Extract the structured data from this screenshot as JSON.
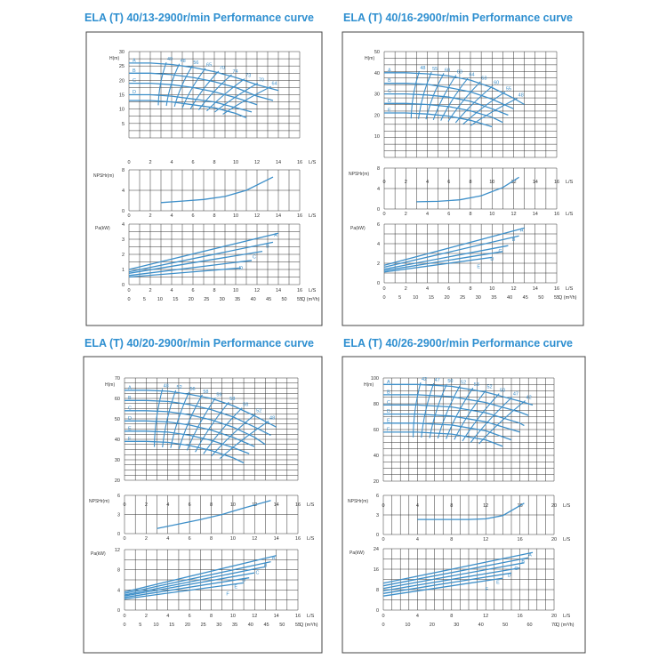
{
  "colors": {
    "curve": "#3d8fc9",
    "grid": "#333333",
    "frame": "#444444",
    "title": "#2e8fd0",
    "axis_text": "#333333"
  },
  "chart_data": [
    {
      "type": "line",
      "title": "ELA (T) 40/13-2900r/min Performance curve",
      "xlabel": "L/S",
      "x2label": "Q (m³/h)",
      "x_ticks": [
        "0",
        "2",
        "4",
        "6",
        "8",
        "10",
        "12",
        "14",
        "16"
      ],
      "x2_ticks": [
        "0",
        "5",
        "10",
        "15",
        "20",
        "25",
        "30",
        "35",
        "40",
        "45",
        "50",
        "55"
      ],
      "head": {
        "ylabel": "H(m)",
        "ylim": [
          0,
          30
        ],
        "y_ticks": [
          "5",
          "10",
          "15",
          "20",
          "25",
          "30"
        ],
        "series": [
          {
            "name": "A",
            "x": [
              0,
              2,
              4,
              6,
              8,
              10,
              12,
              14
            ],
            "y": [
              26,
              26,
              25.5,
              24.5,
              23,
              21,
              18.5,
              16.5
            ]
          },
          {
            "name": "B",
            "x": [
              0,
              2,
              4,
              6,
              8,
              10,
              12,
              13.5
            ],
            "y": [
              22.5,
              22.5,
              22,
              21,
              19.5,
              17.5,
              14.5,
              13
            ]
          },
          {
            "name": "C",
            "x": [
              0,
              2,
              4,
              6,
              8,
              10,
              12
            ],
            "y": [
              19,
              19,
              18.5,
              17.5,
              16,
              14,
              11.5
            ]
          },
          {
            "name": "D",
            "x": [
              0,
              2,
              4,
              6,
              8,
              10,
              11.5
            ],
            "y": [
              15,
              15,
              14.5,
              13.5,
              12.5,
              10.5,
              9
            ]
          },
          {
            "name": "",
            "x": [
              0,
              2,
              4,
              6,
              8,
              10,
              11
            ],
            "y": [
              13,
              13,
              12.5,
              11.5,
              10.5,
              8.5,
              7
            ]
          }
        ],
        "efficiency_labels": [
          "40",
          "48",
          "56",
          "65",
          "70",
          "74",
          "73",
          "70",
          "64"
        ]
      },
      "npsh": {
        "ylabel": "NPSHr(m)",
        "ylim": [
          0,
          8
        ],
        "y_ticks": [
          "0",
          "4",
          "8"
        ],
        "x": [
          3,
          5,
          7,
          9,
          11,
          13.5
        ],
        "y": [
          1.6,
          1.9,
          2.2,
          2.8,
          4,
          6.6
        ]
      },
      "power": {
        "ylabel": "Pa(kW)",
        "ylim": [
          0,
          4
        ],
        "y_ticks": [
          "0",
          "1",
          "2",
          "3",
          "4"
        ],
        "series": [
          {
            "name": "A",
            "x": [
              0,
              14
            ],
            "y": [
              1.0,
              3.4
            ]
          },
          {
            "name": "B",
            "x": [
              0,
              13.5
            ],
            "y": [
              0.85,
              2.8
            ]
          },
          {
            "name": "C",
            "x": [
              0,
              12.5
            ],
            "y": [
              0.75,
              2.2
            ]
          },
          {
            "name": "D",
            "x": [
              0,
              11.5
            ],
            "y": [
              0.6,
              1.6
            ]
          },
          {
            "name": "",
            "x": [
              0,
              10.5
            ],
            "y": [
              0.5,
              1.1
            ]
          }
        ]
      }
    },
    {
      "type": "line",
      "title": "ELA (T) 40/16-2900r/min Performance curve",
      "xlabel": "L/S",
      "x2label": "Q (m³/h)",
      "x_ticks": [
        "0",
        "2",
        "4",
        "6",
        "8",
        "10",
        "12",
        "14",
        "16"
      ],
      "x2_ticks": [
        "0",
        "5",
        "10",
        "15",
        "20",
        "25",
        "30",
        "35",
        "40",
        "45",
        "50",
        "55"
      ],
      "head": {
        "ylabel": "H(m)",
        "ylim": [
          0,
          50
        ],
        "y_ticks": [
          "10",
          "20",
          "30",
          "40",
          "50"
        ],
        "series": [
          {
            "name": "A",
            "x": [
              0,
              2,
              4,
              6,
              8,
              10,
              12,
              13
            ],
            "y": [
              40,
              40,
              39.5,
              38.5,
              36.5,
              33,
              28,
              25
            ]
          },
          {
            "name": "B",
            "x": [
              0,
              2,
              4,
              6,
              8,
              10,
              12
            ],
            "y": [
              35,
              35,
              34.5,
              33,
              31,
              27.5,
              23
            ]
          },
          {
            "name": "C",
            "x": [
              0,
              2,
              4,
              6,
              8,
              10,
              11.5
            ],
            "y": [
              30,
              30,
              29.5,
              28.5,
              26.5,
              23,
              20
            ]
          },
          {
            "name": "D",
            "x": [
              0,
              2,
              4,
              6,
              8,
              10,
              11
            ],
            "y": [
              25.5,
              25.5,
              25,
              24,
              22,
              19,
              16.5
            ]
          },
          {
            "name": "E",
            "x": [
              0,
              2,
              4,
              6,
              8,
              10
            ],
            "y": [
              21,
              21,
              20.5,
              19.5,
              17.5,
              14.5
            ]
          }
        ],
        "efficiency_labels": [
          "48",
          "55",
          "60",
          "63",
          "64",
          "63",
          "60",
          "55",
          "48"
        ]
      },
      "npsh": {
        "ylabel": "NPSHr(m)",
        "ylim": [
          0,
          8
        ],
        "y_ticks": [
          "0",
          "4",
          "8"
        ],
        "x": [
          3,
          5,
          7,
          9,
          11,
          12.5
        ],
        "y": [
          1.4,
          1.5,
          1.8,
          2.6,
          4.2,
          6.2
        ]
      },
      "power": {
        "ylabel": "Pa(kW)",
        "ylim": [
          0,
          6
        ],
        "y_ticks": [
          "0",
          "2",
          "4",
          "6"
        ],
        "series": [
          {
            "name": "A",
            "x": [
              0,
              13
            ],
            "y": [
              1.8,
              5.6
            ]
          },
          {
            "name": "B",
            "x": [
              0,
              12.5
            ],
            "y": [
              1.6,
              4.8
            ]
          },
          {
            "name": "C",
            "x": [
              0,
              11.5
            ],
            "y": [
              1.4,
              3.8
            ]
          },
          {
            "name": "D",
            "x": [
              0,
              11
            ],
            "y": [
              1.25,
              3.2
            ]
          },
          {
            "name": "E",
            "x": [
              0,
              10
            ],
            "y": [
              1.1,
              2.6
            ]
          }
        ]
      }
    },
    {
      "type": "line",
      "title": "ELA (T) 40/20-2900r/min Performance curve",
      "xlabel": "L/S",
      "x2label": "Q (m³/h)",
      "x_ticks": [
        "0",
        "2",
        "4",
        "6",
        "8",
        "10",
        "12",
        "14",
        "16"
      ],
      "x2_ticks": [
        "0",
        "5",
        "10",
        "15",
        "20",
        "25",
        "30",
        "35",
        "40",
        "45",
        "50",
        "55"
      ],
      "head": {
        "ylabel": "H(m)",
        "ylim": [
          20,
          70
        ],
        "y_ticks": [
          "20",
          "30",
          "40",
          "50",
          "60",
          "70"
        ],
        "series": [
          {
            "name": "A",
            "x": [
              0,
              2,
              4,
              6,
              8,
              10,
              12,
              14
            ],
            "y": [
              64,
              64,
              63.5,
              62,
              60,
              56.5,
              51.5,
              46
            ]
          },
          {
            "name": "B",
            "x": [
              0,
              2,
              4,
              6,
              8,
              10,
              12,
              13.5
            ],
            "y": [
              59,
              59,
              58.5,
              57,
              54.5,
              51,
              46,
              42
            ]
          },
          {
            "name": "C",
            "x": [
              0,
              2,
              4,
              6,
              8,
              10,
              12,
              13
            ],
            "y": [
              54,
              54,
              53.5,
              52,
              49.5,
              46,
              41,
              37.5
            ]
          },
          {
            "name": "D",
            "x": [
              0,
              2,
              4,
              6,
              8,
              10,
              12
            ],
            "y": [
              49,
              49,
              48.5,
              47,
              44.5,
              41,
              36.5
            ]
          },
          {
            "name": "E",
            "x": [
              0,
              2,
              4,
              6,
              8,
              10,
              11.5
            ],
            "y": [
              44,
              44,
              43.5,
              42,
              39.5,
              36,
              33
            ]
          },
          {
            "name": "F",
            "x": [
              0,
              2,
              4,
              6,
              8,
              10,
              11
            ],
            "y": [
              39,
              39,
              38.5,
              37,
              34.5,
              31,
              28.5
            ]
          }
        ],
        "efficiency_labels": [
          "48",
          "52",
          "56",
          "58",
          "59",
          "58",
          "56",
          "52",
          "48"
        ]
      },
      "npsh": {
        "ylabel": "NPSHr(m)",
        "ylim": [
          0,
          6
        ],
        "y_ticks": [
          "0",
          "3",
          "6"
        ],
        "x": [
          3,
          5,
          7,
          9,
          11,
          13.5
        ],
        "y": [
          0.8,
          1.5,
          2.2,
          3,
          4,
          5.2
        ]
      },
      "power": {
        "ylabel": "Pa(kW)",
        "ylim": [
          0,
          12
        ],
        "y_ticks": [
          "0",
          "4",
          "8",
          "12"
        ],
        "series": [
          {
            "name": "A",
            "x": [
              0,
              14
            ],
            "y": [
              3.6,
              10.8
            ]
          },
          {
            "name": "B",
            "x": [
              0,
              13.5
            ],
            "y": [
              3.3,
              9.6
            ]
          },
          {
            "name": "C",
            "x": [
              0,
              13
            ],
            "y": [
              3.0,
              8.6
            ]
          },
          {
            "name": "D",
            "x": [
              0,
              12
            ],
            "y": [
              2.8,
              7.4
            ]
          },
          {
            "name": "E",
            "x": [
              0,
              11.5
            ],
            "y": [
              2.5,
              6.4
            ]
          },
          {
            "name": "F",
            "x": [
              0,
              11
            ],
            "y": [
              2.2,
              5.4
            ]
          }
        ]
      }
    },
    {
      "type": "line",
      "title": "ELA (T) 40/26-2900r/min Performance curve",
      "xlabel": "L/S",
      "x2label": "Q (m³/h)",
      "x_ticks": [
        "0",
        "4",
        "8",
        "12",
        "16",
        "20"
      ],
      "x2_ticks": [
        "0",
        "10",
        "20",
        "30",
        "40",
        "50",
        "60",
        "70"
      ],
      "head": {
        "ylabel": "H(m)",
        "ylim": [
          20,
          100
        ],
        "y_ticks": [
          "20",
          "40",
          "60",
          "80",
          "100"
        ],
        "series": [
          {
            "name": "A",
            "x": [
              0,
              4,
              8,
              12,
              16,
              17.5
            ],
            "y": [
              95,
              95,
              93.5,
              89,
              82,
              79
            ]
          },
          {
            "name": "B",
            "x": [
              0,
              4,
              8,
              12,
              16,
              17
            ],
            "y": [
              87,
              87,
              85.5,
              81,
              73.5,
              71
            ]
          },
          {
            "name": "C",
            "x": [
              0,
              4,
              8,
              12,
              16,
              16.5
            ],
            "y": [
              79,
              79,
              77.5,
              73,
              65,
              63
            ]
          },
          {
            "name": "D",
            "x": [
              0,
              4,
              8,
              12,
              16
            ],
            "y": [
              72,
              72,
              70.5,
              66,
              58
            ]
          },
          {
            "name": "E",
            "x": [
              0,
              4,
              8,
              12,
              15
            ],
            "y": [
              65,
              65,
              63.5,
              59,
              52
            ]
          },
          {
            "name": "F",
            "x": [
              0,
              4,
              8,
              12,
              14
            ],
            "y": [
              58,
              58,
              56.5,
              52,
              47
            ]
          }
        ],
        "efficiency_labels": [
          "42",
          "47",
          "50",
          "52",
          "53",
          "52",
          "50",
          "47",
          "42"
        ]
      },
      "npsh": {
        "ylabel": "NPSHr(m)",
        "ylim": [
          0,
          6
        ],
        "y_ticks": [
          "0",
          "3",
          "6"
        ],
        "x": [
          4,
          6,
          8,
          10,
          12,
          14,
          16.5
        ],
        "y": [
          2.3,
          2.3,
          2.3,
          2.3,
          2.4,
          2.9,
          4.8
        ]
      },
      "power": {
        "ylabel": "Pa(kW)",
        "ylim": [
          0,
          24
        ],
        "y_ticks": [
          "0",
          "8",
          "16",
          "24"
        ],
        "series": [
          {
            "name": "A",
            "x": [
              0,
              17.5
            ],
            "y": [
              10.5,
              22.5
            ]
          },
          {
            "name": "B",
            "x": [
              0,
              17
            ],
            "y": [
              9.5,
              20.5
            ]
          },
          {
            "name": "C",
            "x": [
              0,
              16.5
            ],
            "y": [
              8.5,
              18.5
            ]
          },
          {
            "name": "D",
            "x": [
              0,
              16
            ],
            "y": [
              7.5,
              16.5
            ]
          },
          {
            "name": "E",
            "x": [
              0,
              15
            ],
            "y": [
              6.5,
              14.5
            ]
          },
          {
            "name": "F",
            "x": [
              0,
              14
            ],
            "y": [
              5.5,
              12.5
            ]
          }
        ]
      }
    }
  ]
}
